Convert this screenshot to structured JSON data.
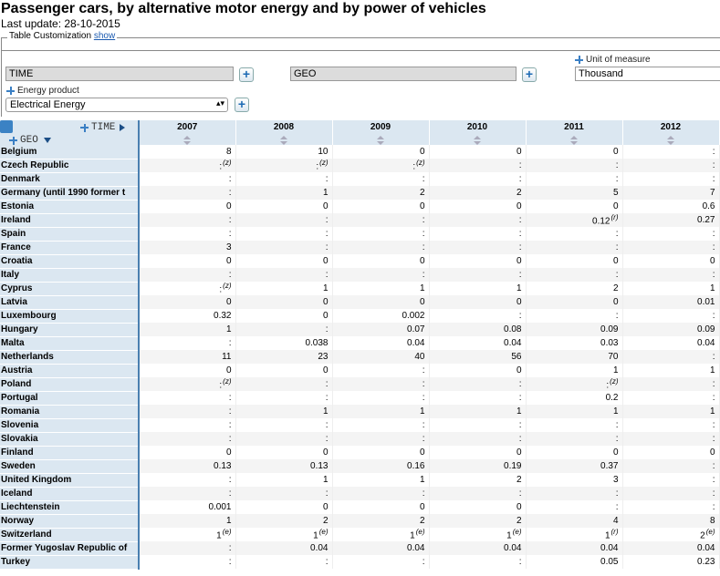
{
  "title": "Passenger cars, by alternative motor energy and by power of vehicles",
  "last_update": "Last update: 28-10-2015",
  "customization": {
    "label": "Table Customization",
    "link": "show"
  },
  "fields": {
    "time": "TIME",
    "geo": "GEO",
    "unit_label": "Unit of measure",
    "unit_value": "Thousand",
    "energy_label": "Energy product",
    "energy_value": "Electrical Energy"
  },
  "table": {
    "time_label": "TIME",
    "geo_label": "GEO",
    "years": [
      "2007",
      "2008",
      "2009",
      "2010",
      "2011",
      "2012"
    ],
    "rows": [
      {
        "geo": "Belgium",
        "cells": [
          [
            "8",
            ""
          ],
          [
            "10",
            ""
          ],
          [
            "0",
            ""
          ],
          [
            "0",
            ""
          ],
          [
            "0",
            ""
          ],
          [
            ":",
            ""
          ]
        ]
      },
      {
        "geo": "Czech Republic",
        "cells": [
          [
            ":",
            "(z)"
          ],
          [
            ":",
            "(z)"
          ],
          [
            ":",
            "(z)"
          ],
          [
            ":",
            ""
          ],
          [
            ":",
            ""
          ],
          [
            ":",
            ""
          ]
        ]
      },
      {
        "geo": "Denmark",
        "cells": [
          [
            ":",
            ""
          ],
          [
            ":",
            ""
          ],
          [
            ":",
            ""
          ],
          [
            ":",
            ""
          ],
          [
            ":",
            ""
          ],
          [
            ":",
            ""
          ]
        ]
      },
      {
        "geo": "Germany (until 1990 former t",
        "cells": [
          [
            ":",
            ""
          ],
          [
            "1",
            ""
          ],
          [
            "2",
            ""
          ],
          [
            "2",
            ""
          ],
          [
            "5",
            ""
          ],
          [
            "7",
            ""
          ]
        ]
      },
      {
        "geo": "Estonia",
        "cells": [
          [
            "0",
            ""
          ],
          [
            "0",
            ""
          ],
          [
            "0",
            ""
          ],
          [
            "0",
            ""
          ],
          [
            "0",
            ""
          ],
          [
            "0.6",
            ""
          ]
        ]
      },
      {
        "geo": "Ireland",
        "cells": [
          [
            ":",
            ""
          ],
          [
            ":",
            ""
          ],
          [
            ":",
            ""
          ],
          [
            ":",
            ""
          ],
          [
            "0.12",
            "(r)"
          ],
          [
            "0.27",
            ""
          ]
        ]
      },
      {
        "geo": "Spain",
        "cells": [
          [
            ":",
            ""
          ],
          [
            ":",
            ""
          ],
          [
            ":",
            ""
          ],
          [
            ":",
            ""
          ],
          [
            ":",
            ""
          ],
          [
            ":",
            ""
          ]
        ]
      },
      {
        "geo": "France",
        "cells": [
          [
            "3",
            ""
          ],
          [
            ":",
            ""
          ],
          [
            ":",
            ""
          ],
          [
            ":",
            ""
          ],
          [
            ":",
            ""
          ],
          [
            ":",
            ""
          ]
        ]
      },
      {
        "geo": "Croatia",
        "cells": [
          [
            "0",
            ""
          ],
          [
            "0",
            ""
          ],
          [
            "0",
            ""
          ],
          [
            "0",
            ""
          ],
          [
            "0",
            ""
          ],
          [
            "0",
            ""
          ]
        ]
      },
      {
        "geo": "Italy",
        "cells": [
          [
            ":",
            ""
          ],
          [
            ":",
            ""
          ],
          [
            ":",
            ""
          ],
          [
            ":",
            ""
          ],
          [
            ":",
            ""
          ],
          [
            ":",
            ""
          ]
        ]
      },
      {
        "geo": "Cyprus",
        "cells": [
          [
            ":",
            "(z)"
          ],
          [
            "1",
            ""
          ],
          [
            "1",
            ""
          ],
          [
            "1",
            ""
          ],
          [
            "2",
            ""
          ],
          [
            "1",
            ""
          ]
        ]
      },
      {
        "geo": "Latvia",
        "cells": [
          [
            "0",
            ""
          ],
          [
            "0",
            ""
          ],
          [
            "0",
            ""
          ],
          [
            "0",
            ""
          ],
          [
            "0",
            ""
          ],
          [
            "0.01",
            ""
          ]
        ]
      },
      {
        "geo": "Luxembourg",
        "cells": [
          [
            "0.32",
            ""
          ],
          [
            "0",
            ""
          ],
          [
            "0.002",
            ""
          ],
          [
            ":",
            ""
          ],
          [
            ":",
            ""
          ],
          [
            ":",
            ""
          ]
        ]
      },
      {
        "geo": "Hungary",
        "cells": [
          [
            "1",
            ""
          ],
          [
            ":",
            ""
          ],
          [
            "0.07",
            ""
          ],
          [
            "0.08",
            ""
          ],
          [
            "0.09",
            ""
          ],
          [
            "0.09",
            ""
          ]
        ]
      },
      {
        "geo": "Malta",
        "cells": [
          [
            ":",
            ""
          ],
          [
            "0.038",
            ""
          ],
          [
            "0.04",
            ""
          ],
          [
            "0.04",
            ""
          ],
          [
            "0.03",
            ""
          ],
          [
            "0.04",
            ""
          ]
        ]
      },
      {
        "geo": "Netherlands",
        "cells": [
          [
            "11",
            ""
          ],
          [
            "23",
            ""
          ],
          [
            "40",
            ""
          ],
          [
            "56",
            ""
          ],
          [
            "70",
            ""
          ],
          [
            ":",
            ""
          ]
        ]
      },
      {
        "geo": "Austria",
        "cells": [
          [
            "0",
            ""
          ],
          [
            "0",
            ""
          ],
          [
            ":",
            ""
          ],
          [
            "0",
            ""
          ],
          [
            "1",
            ""
          ],
          [
            "1",
            ""
          ]
        ]
      },
      {
        "geo": "Poland",
        "cells": [
          [
            ":",
            "(z)"
          ],
          [
            ":",
            ""
          ],
          [
            ":",
            ""
          ],
          [
            ":",
            ""
          ],
          [
            ":",
            "(z)"
          ],
          [
            ":",
            ""
          ]
        ]
      },
      {
        "geo": "Portugal",
        "cells": [
          [
            ":",
            ""
          ],
          [
            ":",
            ""
          ],
          [
            ":",
            ""
          ],
          [
            ":",
            ""
          ],
          [
            "0.2",
            ""
          ],
          [
            ":",
            ""
          ]
        ]
      },
      {
        "geo": "Romania",
        "cells": [
          [
            ":",
            ""
          ],
          [
            "1",
            ""
          ],
          [
            "1",
            ""
          ],
          [
            "1",
            ""
          ],
          [
            "1",
            ""
          ],
          [
            "1",
            ""
          ]
        ]
      },
      {
        "geo": "Slovenia",
        "cells": [
          [
            ":",
            ""
          ],
          [
            ":",
            ""
          ],
          [
            ":",
            ""
          ],
          [
            ":",
            ""
          ],
          [
            ":",
            ""
          ],
          [
            ":",
            ""
          ]
        ]
      },
      {
        "geo": "Slovakia",
        "cells": [
          [
            ":",
            ""
          ],
          [
            ":",
            ""
          ],
          [
            ":",
            ""
          ],
          [
            ":",
            ""
          ],
          [
            ":",
            ""
          ],
          [
            ":",
            ""
          ]
        ]
      },
      {
        "geo": "Finland",
        "cells": [
          [
            "0",
            ""
          ],
          [
            "0",
            ""
          ],
          [
            "0",
            ""
          ],
          [
            "0",
            ""
          ],
          [
            "0",
            ""
          ],
          [
            "0",
            ""
          ]
        ]
      },
      {
        "geo": "Sweden",
        "cells": [
          [
            "0.13",
            ""
          ],
          [
            "0.13",
            ""
          ],
          [
            "0.16",
            ""
          ],
          [
            "0.19",
            ""
          ],
          [
            "0.37",
            ""
          ],
          [
            ":",
            ""
          ]
        ]
      },
      {
        "geo": "United Kingdom",
        "cells": [
          [
            ":",
            ""
          ],
          [
            "1",
            ""
          ],
          [
            "1",
            ""
          ],
          [
            "2",
            ""
          ],
          [
            "3",
            ""
          ],
          [
            ":",
            ""
          ]
        ]
      },
      {
        "geo": "Iceland",
        "cells": [
          [
            ":",
            ""
          ],
          [
            ":",
            ""
          ],
          [
            ":",
            ""
          ],
          [
            ":",
            ""
          ],
          [
            ":",
            ""
          ],
          [
            ":",
            ""
          ]
        ]
      },
      {
        "geo": "Liechtenstein",
        "cells": [
          [
            "0.001",
            ""
          ],
          [
            "0",
            ""
          ],
          [
            "0",
            ""
          ],
          [
            "0",
            ""
          ],
          [
            ":",
            ""
          ],
          [
            ":",
            ""
          ]
        ]
      },
      {
        "geo": "Norway",
        "cells": [
          [
            "1",
            ""
          ],
          [
            "2",
            ""
          ],
          [
            "2",
            ""
          ],
          [
            "2",
            ""
          ],
          [
            "4",
            ""
          ],
          [
            "8",
            ""
          ]
        ]
      },
      {
        "geo": "Switzerland",
        "cells": [
          [
            "1",
            "(e)"
          ],
          [
            "1",
            "(e)"
          ],
          [
            "1",
            "(e)"
          ],
          [
            "1",
            "(e)"
          ],
          [
            "1",
            "(r)"
          ],
          [
            "2",
            "(e)"
          ]
        ]
      },
      {
        "geo": "Former Yugoslav Republic of",
        "cells": [
          [
            ":",
            ""
          ],
          [
            "0.04",
            ""
          ],
          [
            "0.04",
            ""
          ],
          [
            "0.04",
            ""
          ],
          [
            "0.04",
            ""
          ],
          [
            "0.04",
            ""
          ]
        ]
      },
      {
        "geo": "Turkey",
        "cells": [
          [
            ":",
            ""
          ],
          [
            ":",
            ""
          ],
          [
            ":",
            ""
          ],
          [
            ":",
            ""
          ],
          [
            "0.05",
            ""
          ],
          [
            "0.23",
            ""
          ]
        ]
      }
    ]
  }
}
